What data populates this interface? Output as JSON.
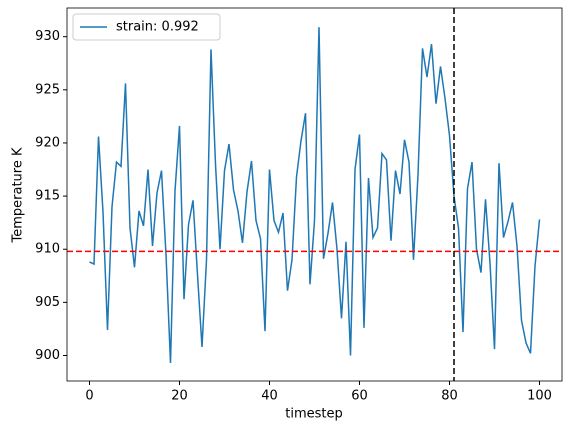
{
  "chart_data": {
    "type": "line",
    "xlabel": "timestep",
    "ylabel": "Temperature K",
    "x": [
      0,
      1,
      2,
      3,
      4,
      5,
      6,
      7,
      8,
      9,
      10,
      11,
      12,
      13,
      14,
      15,
      16,
      17,
      18,
      19,
      20,
      21,
      22,
      23,
      24,
      25,
      26,
      27,
      28,
      29,
      30,
      31,
      32,
      33,
      34,
      35,
      36,
      37,
      38,
      39,
      40,
      41,
      42,
      43,
      44,
      45,
      46,
      47,
      48,
      49,
      50,
      51,
      52,
      53,
      54,
      55,
      56,
      57,
      58,
      59,
      60,
      61,
      62,
      63,
      64,
      65,
      66,
      67,
      68,
      69,
      70,
      71,
      72,
      73,
      74,
      75,
      76,
      77,
      78,
      79,
      80,
      81,
      82,
      83,
      84,
      85,
      86,
      87,
      88,
      89,
      90,
      91,
      92,
      93,
      94,
      95,
      96,
      97,
      98,
      99,
      100
    ],
    "series": [
      {
        "name": "strain: 0.992",
        "color": "#1f77b4",
        "values": [
          908.8,
          908.6,
          920.6,
          913.5,
          902.4,
          914,
          918.2,
          917.8,
          925.6,
          912,
          908.3,
          913.6,
          912.2,
          917.5,
          910.3,
          915.3,
          917.4,
          909.5,
          899.3,
          915.5,
          921.6,
          905.3,
          912.3,
          914.6,
          907.6,
          900.8,
          909,
          928.8,
          918,
          910,
          917.4,
          919.9,
          915.6,
          913.6,
          910.6,
          915.4,
          918.3,
          912.7,
          911,
          902.3,
          917.5,
          912.7,
          911.6,
          913.4,
          906.1,
          909,
          916.8,
          920.2,
          922.8,
          906.7,
          912.7,
          930.9,
          909.1,
          911.5,
          914.4,
          910,
          903.5,
          910.7,
          900,
          917.5,
          920.8,
          902.6,
          916.7,
          911.1,
          912,
          919,
          918.4,
          910.8,
          917.4,
          915.2,
          920.3,
          918.2,
          909,
          917,
          928.9,
          926.2,
          929.3,
          923.7,
          927.2,
          924.2,
          920.7,
          915,
          912,
          902.2,
          915.7,
          918.2,
          910,
          907.8,
          914.7,
          908.7,
          900.6,
          918.1,
          911.1,
          912.6,
          914.4,
          910.3,
          903.3,
          901.2,
          900.2,
          908.4,
          912.8
        ]
      }
    ],
    "hline": {
      "value": 909.8,
      "color": "#ff0000"
    },
    "vline": {
      "value": 81,
      "color": "#000000"
    },
    "xlim": [
      -5,
      105
    ],
    "ylim": [
      897.6,
      932.7
    ],
    "xticks": [
      0,
      20,
      40,
      60,
      80,
      100
    ],
    "yticks": [
      900,
      905,
      910,
      915,
      920,
      925,
      930
    ],
    "legend": "upper left"
  }
}
